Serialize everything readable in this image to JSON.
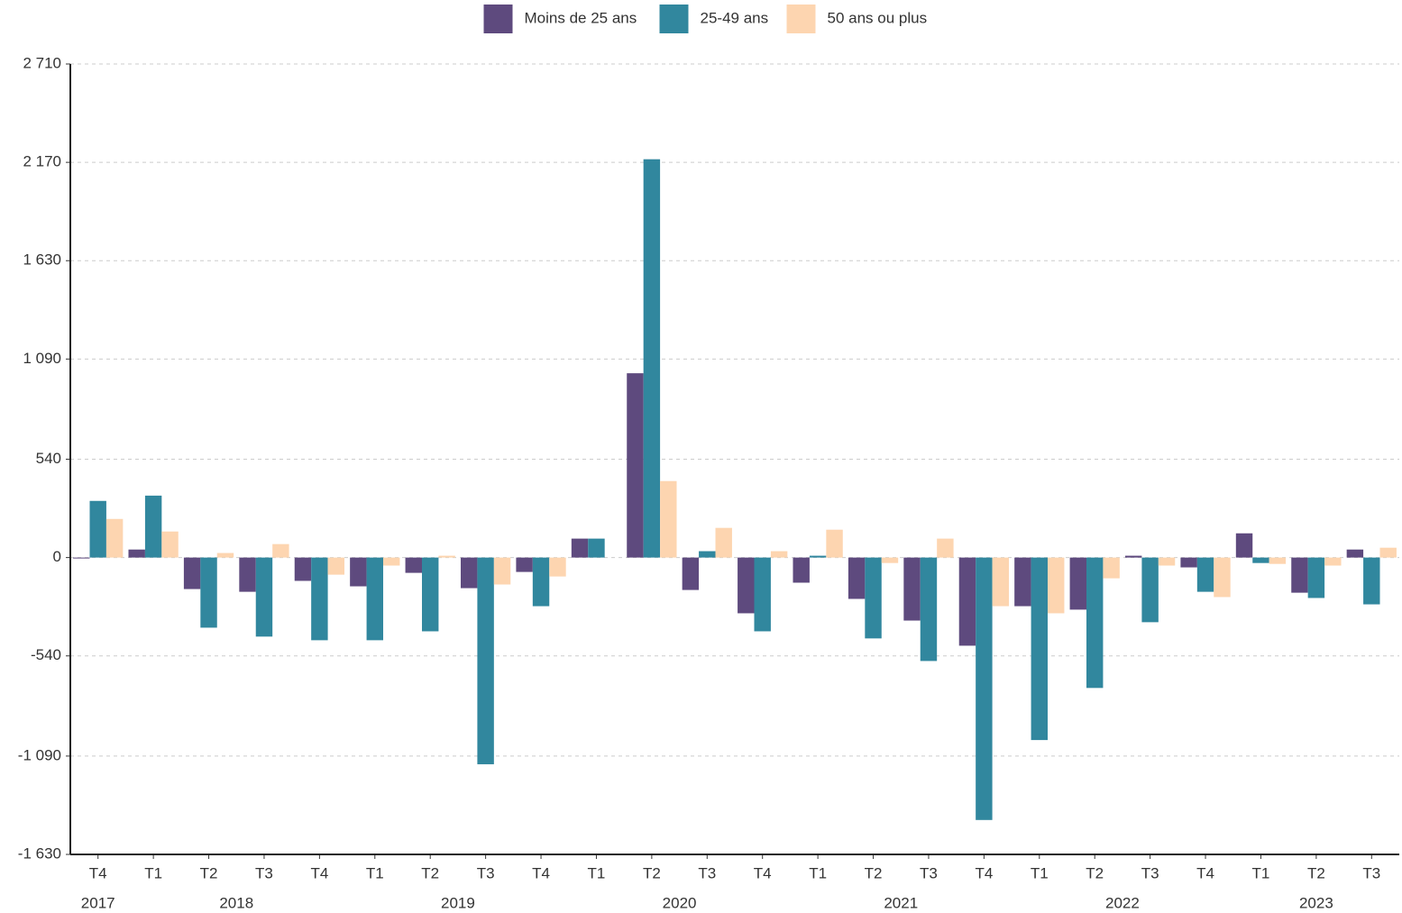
{
  "chart_data": {
    "type": "bar",
    "categories": [
      "T4",
      "T1",
      "T2",
      "T3",
      "T4",
      "T1",
      "T2",
      "T3",
      "T4",
      "T1",
      "T2",
      "T3",
      "T4",
      "T1",
      "T2",
      "T3",
      "T4",
      "T1",
      "T2",
      "T3",
      "T4",
      "T1",
      "T2",
      "T3"
    ],
    "x_years": [
      "2017",
      "2018",
      "2018",
      "2018",
      "2018",
      "2019",
      "2019",
      "2019",
      "2019",
      "2020",
      "2020",
      "2020",
      "2020",
      "2021",
      "2021",
      "2021",
      "2021",
      "2022",
      "2022",
      "2022",
      "2022",
      "2023",
      "2023",
      "2023"
    ],
    "series": [
      {
        "name": "Moins de 25 ans",
        "color": "#5e4a7e",
        "values": [
          -5,
          44,
          -173,
          -188,
          -128,
          -158,
          -84,
          -168,
          -79,
          104,
          1012,
          -178,
          -306,
          -138,
          -227,
          -346,
          -484,
          -267,
          -286,
          10,
          -54,
          133,
          -193,
          44
        ]
      },
      {
        "name": "25-49 ans",
        "color": "#31879e",
        "values": [
          311,
          340,
          -385,
          -434,
          -454,
          -454,
          -405,
          -1135,
          -267,
          104,
          2187,
          35,
          -405,
          10,
          -444,
          -568,
          -1441,
          -1002,
          -716,
          -355,
          -188,
          -30,
          -222,
          -257
        ]
      },
      {
        "name": "50 ans ou plus",
        "color": "#fdd5b0",
        "values": [
          212,
          143,
          25,
          74,
          -94,
          -44,
          10,
          -148,
          -104,
          0,
          420,
          163,
          35,
          153,
          -30,
          104,
          -267,
          -306,
          -114,
          -44,
          -217,
          -35,
          -44,
          54
        ]
      }
    ],
    "ylim": [
      -1630,
      2710
    ],
    "yticks": [
      {
        "value": -1630,
        "label": "-1 630"
      },
      {
        "value": -1090,
        "label": "-1 090"
      },
      {
        "value": -540,
        "label": "-540"
      },
      0,
      540,
      {
        "value": 1090,
        "label": "1 090"
      },
      {
        "value": 1630,
        "label": "1 630"
      },
      {
        "value": 2170,
        "label": "2 170"
      },
      {
        "value": 2710,
        "label": "2 710"
      }
    ],
    "grid": true,
    "legend": "top"
  }
}
